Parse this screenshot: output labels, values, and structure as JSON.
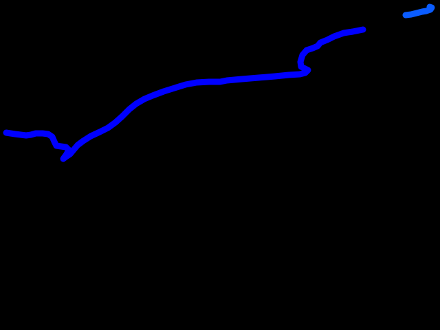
{
  "canvas": {
    "background": "#000000"
  },
  "strokes": [
    {
      "name": "main-stroke",
      "color": "#0000ff"
    },
    {
      "name": "small-stroke",
      "color": "#0a5cff"
    }
  ]
}
